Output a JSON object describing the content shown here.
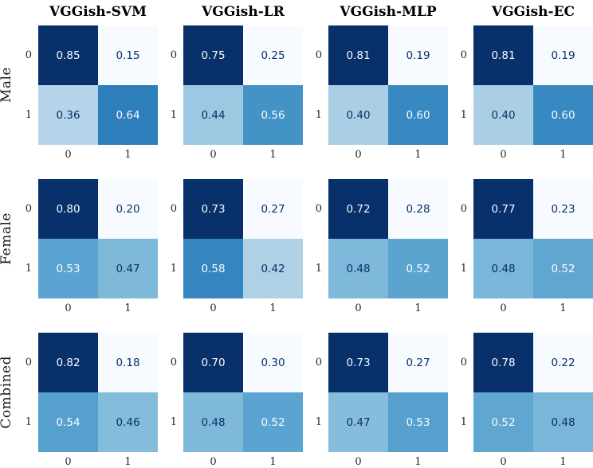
{
  "figure": {
    "background": "#ffffff",
    "colormap": {
      "name": "Blues",
      "stops": [
        "#f7fbff",
        "#deebf7",
        "#c6dbef",
        "#9ecae1",
        "#6baed6",
        "#4292c6",
        "#2171b5",
        "#08519c",
        "#08306b"
      ]
    },
    "cell_text_light": "#f7fbff",
    "cell_text_dark": "#08306b",
    "tick_text_color": "#262626",
    "title_text_color": "#000000"
  },
  "chart_data": {
    "type": "heatmap",
    "subtype": "confusion-matrix-grid",
    "column_titles": [
      "VGGish-SVM",
      "VGGish-LR",
      "VGGish-MLP",
      "VGGish-EC"
    ],
    "row_labels": [
      "Male",
      "Female",
      "Combined"
    ],
    "x_tick_labels": [
      "0",
      "1"
    ],
    "y_tick_labels": [
      "0",
      "1"
    ],
    "value_decimals": 2,
    "normalization": "per-matrix min-max",
    "rows": [
      {
        "label": "Male",
        "matrices": [
          [
            [
              0.85,
              0.15
            ],
            [
              0.36,
              0.64
            ]
          ],
          [
            [
              0.75,
              0.25
            ],
            [
              0.44,
              0.56
            ]
          ],
          [
            [
              0.81,
              0.19
            ],
            [
              0.4,
              0.6
            ]
          ],
          [
            [
              0.81,
              0.19
            ],
            [
              0.4,
              0.6
            ]
          ]
        ]
      },
      {
        "label": "Female",
        "matrices": [
          [
            [
              0.8,
              0.2
            ],
            [
              0.53,
              0.47
            ]
          ],
          [
            [
              0.73,
              0.27
            ],
            [
              0.58,
              0.42
            ]
          ],
          [
            [
              0.72,
              0.28
            ],
            [
              0.48,
              0.52
            ]
          ],
          [
            [
              0.77,
              0.23
            ],
            [
              0.48,
              0.52
            ]
          ]
        ]
      },
      {
        "label": "Combined",
        "matrices": [
          [
            [
              0.82,
              0.18
            ],
            [
              0.54,
              0.46
            ]
          ],
          [
            [
              0.7,
              0.3
            ],
            [
              0.48,
              0.52
            ]
          ],
          [
            [
              0.73,
              0.27
            ],
            [
              0.47,
              0.53
            ]
          ],
          [
            [
              0.78,
              0.22
            ],
            [
              0.52,
              0.48
            ]
          ]
        ]
      }
    ]
  }
}
